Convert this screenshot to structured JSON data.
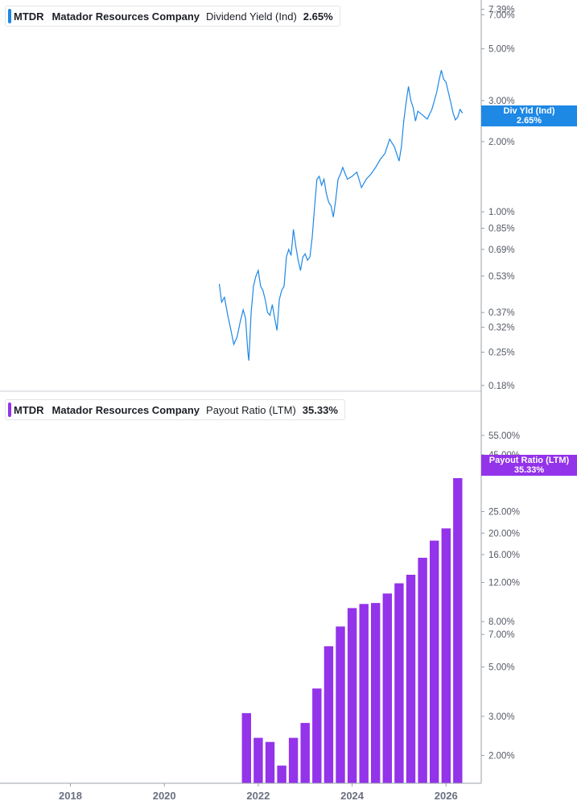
{
  "colors": {
    "dividend": "#1e88e5",
    "payout": "#9333ea",
    "axis": "#9aa0aa"
  },
  "panels": [
    {
      "ticker": "MTDR",
      "company": "Matador Resources Company",
      "metric": "Dividend Yield (Ind)",
      "value": "2.65%",
      "tag_line1": "Div Yld (Ind)",
      "tag_line2": "2.65%"
    },
    {
      "ticker": "MTDR",
      "company": "Matador Resources Company",
      "metric": "Payout Ratio (LTM)",
      "value": "35.33%",
      "tag_line1": "Payout Ratio (LTM)",
      "tag_line2": "35.33%"
    }
  ],
  "chart_data": [
    {
      "type": "line",
      "title": "MTDR Matador Resources Company Dividend Yield (Ind) 2.65%",
      "y_scale": "log",
      "ylim": [
        0.17,
        7.6
      ],
      "y_ticks": [
        "7.39%",
        "7.00%",
        "5.00%",
        "3.00%",
        "2.00%",
        "1.00%",
        "0.85%",
        "0.69%",
        "0.53%",
        "0.37%",
        "0.32%",
        "0.25%",
        "0.18%"
      ],
      "y_tick_values": [
        7.39,
        7.0,
        5.0,
        3.0,
        2.0,
        1.0,
        0.85,
        0.69,
        0.53,
        0.37,
        0.32,
        0.25,
        0.18
      ],
      "series": [
        {
          "name": "Div Yld (Ind)",
          "x": [
            2021.17,
            2021.22,
            2021.28,
            2021.35,
            2021.42,
            2021.48,
            2021.55,
            2021.62,
            2021.68,
            2021.73,
            2021.78,
            2021.8,
            2021.85,
            2021.9,
            2021.95,
            2022.0,
            2022.05,
            2022.1,
            2022.15,
            2022.2,
            2022.25,
            2022.3,
            2022.35,
            2022.4,
            2022.45,
            2022.5,
            2022.55,
            2022.6,
            2022.65,
            2022.7,
            2022.75,
            2022.8,
            2022.85,
            2022.9,
            2022.95,
            2023.0,
            2023.05,
            2023.1,
            2023.15,
            2023.2,
            2023.25,
            2023.3,
            2023.35,
            2023.4,
            2023.45,
            2023.5,
            2023.55,
            2023.6,
            2023.65,
            2023.7,
            2023.75,
            2023.8,
            2023.85,
            2023.9,
            2024.0,
            2024.1,
            2024.2,
            2024.3,
            2024.4,
            2024.5,
            2024.6,
            2024.7,
            2024.8,
            2024.9,
            2025.0,
            2025.05,
            2025.1,
            2025.15,
            2025.2,
            2025.25,
            2025.3,
            2025.35,
            2025.4,
            2025.5,
            2025.6,
            2025.7,
            2025.8,
            2025.85,
            2025.9,
            2025.95,
            2026.0,
            2026.05,
            2026.1,
            2026.15,
            2026.2,
            2026.25,
            2026.3,
            2026.35
          ],
          "y": [
            0.49,
            0.41,
            0.43,
            0.36,
            0.31,
            0.27,
            0.29,
            0.34,
            0.38,
            0.35,
            0.25,
            0.23,
            0.37,
            0.48,
            0.53,
            0.56,
            0.48,
            0.46,
            0.42,
            0.37,
            0.36,
            0.4,
            0.35,
            0.31,
            0.42,
            0.46,
            0.48,
            0.64,
            0.69,
            0.65,
            0.84,
            0.71,
            0.62,
            0.56,
            0.64,
            0.66,
            0.62,
            0.64,
            0.78,
            1.05,
            1.38,
            1.42,
            1.3,
            1.38,
            1.2,
            1.1,
            1.06,
            0.95,
            1.12,
            1.38,
            1.45,
            1.55,
            1.46,
            1.38,
            1.42,
            1.48,
            1.27,
            1.38,
            1.45,
            1.55,
            1.68,
            1.78,
            2.05,
            1.9,
            1.65,
            1.9,
            2.45,
            2.95,
            3.45,
            3.0,
            2.8,
            2.45,
            2.7,
            2.6,
            2.5,
            2.75,
            3.25,
            3.65,
            4.05,
            3.7,
            3.6,
            3.25,
            2.95,
            2.65,
            2.48,
            2.55,
            2.75,
            2.65
          ]
        }
      ]
    },
    {
      "type": "bar",
      "title": "MTDR Matador Resources Company Payout Ratio (LTM) 35.33%",
      "y_scale": "log",
      "ylim": [
        1.5,
        70
      ],
      "y_ticks": [
        "55.00%",
        "45.00%",
        "25.00%",
        "20.00%",
        "16.00%",
        "12.00%",
        "8.00%",
        "7.00%",
        "5.00%",
        "3.00%",
        "2.00%"
      ],
      "y_tick_values": [
        55,
        45,
        25,
        20,
        16,
        12,
        8,
        7,
        5,
        3,
        2
      ],
      "x": [
        2021.75,
        2022.0,
        2022.25,
        2022.5,
        2022.75,
        2023.0,
        2023.25,
        2023.5,
        2023.75,
        2024.0,
        2024.25,
        2024.5,
        2024.75,
        2025.0,
        2025.25,
        2025.5,
        2025.75,
        2026.0,
        2026.25
      ],
      "series": [
        {
          "name": "Payout Ratio (LTM)",
          "values": [
            3.1,
            2.4,
            2.3,
            1.8,
            2.4,
            2.8,
            4.0,
            6.2,
            7.6,
            9.2,
            9.6,
            9.7,
            10.7,
            11.9,
            13.0,
            15.5,
            18.5,
            21.0,
            35.33
          ]
        }
      ]
    }
  ],
  "x_axis": {
    "ticks": [
      "2018",
      "2020",
      "2022",
      "2024",
      "2026"
    ],
    "tick_values": [
      2018,
      2020,
      2022,
      2024,
      2026
    ],
    "xlim": [
      2016.5,
      2026.75
    ]
  }
}
